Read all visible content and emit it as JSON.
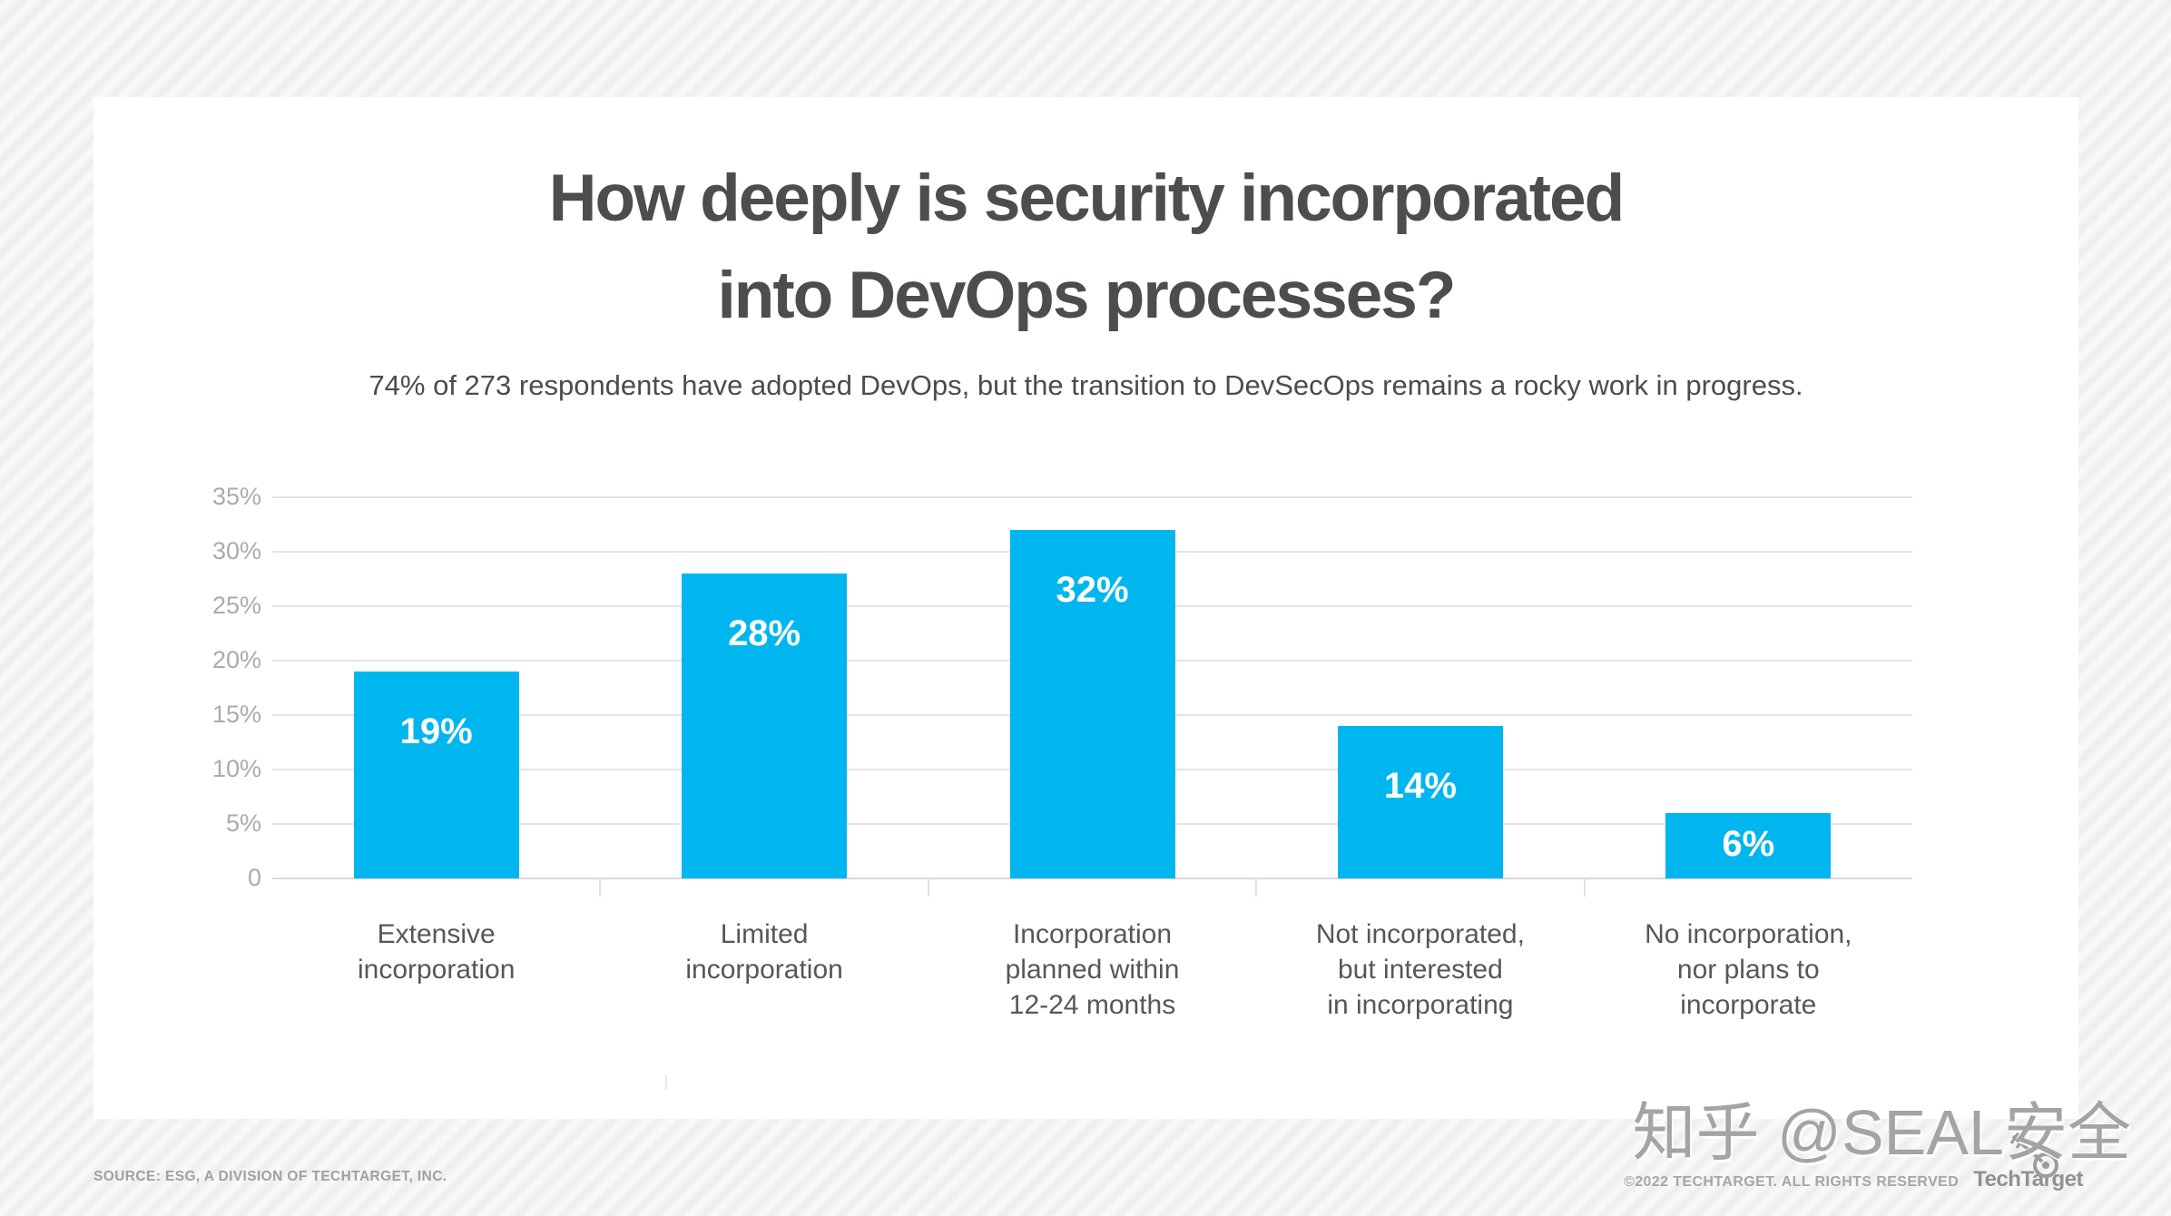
{
  "header": {
    "title_line1": "How deeply is security incorporated",
    "title_line2": "into DevOps processes?",
    "subtitle": "74% of 273 respondents have adopted DevOps, but the transition to DevSecOps remains a rocky work in progress."
  },
  "chart_data": {
    "type": "bar",
    "title": "How deeply is security incorporated into DevOps processes?",
    "subtitle": "74% of 273 respondents have adopted DevOps, but the transition to DevSecOps remains a rocky work in progress.",
    "categories": [
      "Extensive incorporation",
      "Limited incorporation",
      "Incorporation planned within 12-24 months",
      "Not incorporated, but interested in incorporating",
      "No incorporation, nor plans to incorporate"
    ],
    "category_lines": [
      [
        "Extensive",
        "incorporation"
      ],
      [
        "Limited",
        "incorporation"
      ],
      [
        "Incorporation",
        "planned within",
        "12-24 months"
      ],
      [
        "Not incorporated,",
        "but interested",
        "in incorporating"
      ],
      [
        "No incorporation,",
        "nor plans to",
        "incorporate"
      ]
    ],
    "values": [
      19,
      28,
      32,
      14,
      6
    ],
    "value_labels": [
      "19%",
      "28%",
      "32%",
      "14%",
      "6%"
    ],
    "xlabel": "",
    "ylabel": "",
    "ylim": [
      0,
      35
    ],
    "y_ticks": [
      "35%",
      "30%",
      "25%",
      "20%",
      "15%",
      "10%",
      "5%",
      "0"
    ],
    "y_tick_values": [
      35,
      30,
      25,
      20,
      15,
      10,
      5,
      0
    ],
    "grid": true,
    "legend": false,
    "bar_color": "#00b6ee",
    "value_label_color": "#ffffff"
  },
  "footer": {
    "source": "SOURCE: ESG, A DIVISION OF TECHTARGET, INC.",
    "copyright": "©2022 TECHTARGET. ALL RIGHTS RESERVED",
    "logo_text": "TechTarget"
  },
  "watermark": {
    "text": "知乎 @SEAL安全"
  },
  "colors": {
    "bar": "#00b6ee",
    "title": "#4c4d4f",
    "gridline": "#e3e4e5",
    "axis_label": "#a9abae",
    "category_label": "#55575a",
    "card_background": "#ffffff"
  }
}
